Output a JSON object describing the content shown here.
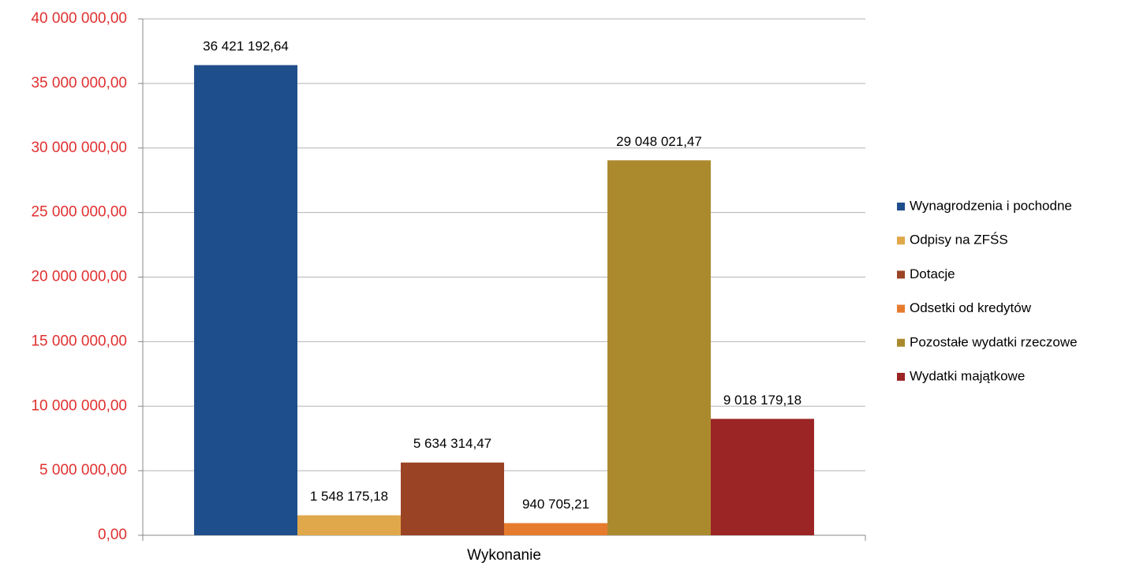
{
  "chart_data": {
    "type": "bar",
    "categories": [
      "Wykonanie"
    ],
    "series": [
      {
        "name": "Wynagrodzenia i pochodne",
        "color": "#1f4e8c",
        "values": [
          36421192.64
        ],
        "value_labels": [
          "36 421 192,64"
        ]
      },
      {
        "name": "Odpisy na ZFŚS",
        "color": "#e0a84a",
        "values": [
          1548175.18
        ],
        "value_labels": [
          "1 548 175,18"
        ]
      },
      {
        "name": "Dotacje",
        "color": "#9b4325",
        "values": [
          5634314.47
        ],
        "value_labels": [
          "5 634 314,47"
        ]
      },
      {
        "name": "Odsetki od kredytów",
        "color": "#e67b2e",
        "values": [
          940705.21
        ],
        "value_labels": [
          "940 705,21"
        ]
      },
      {
        "name": "Pozostałe wydatki rzeczowe",
        "color": "#ab8a2e",
        "values": [
          29048021.47
        ],
        "value_labels": [
          "29 048 021,47"
        ]
      },
      {
        "name": "Wydatki majątkowe",
        "color": "#9b2424",
        "values": [
          9018179.18
        ],
        "value_labels": [
          "9 018 179,18"
        ]
      }
    ],
    "ylim": [
      0,
      40000000
    ],
    "yticks": [
      {
        "value": 0,
        "label": "0,00"
      },
      {
        "value": 5000000,
        "label": "5 000 000,00"
      },
      {
        "value": 10000000,
        "label": "10 000 000,00"
      },
      {
        "value": 15000000,
        "label": "15 000 000,00"
      },
      {
        "value": 20000000,
        "label": "20 000 000,00"
      },
      {
        "value": 25000000,
        "label": "25 000 000,00"
      },
      {
        "value": 30000000,
        "label": "30 000 000,00"
      },
      {
        "value": 35000000,
        "label": "35 000 000,00"
      },
      {
        "value": 40000000,
        "label": "40 000 000,00"
      }
    ],
    "grid": true,
    "legend": "right",
    "tick_color": "#e03030"
  }
}
